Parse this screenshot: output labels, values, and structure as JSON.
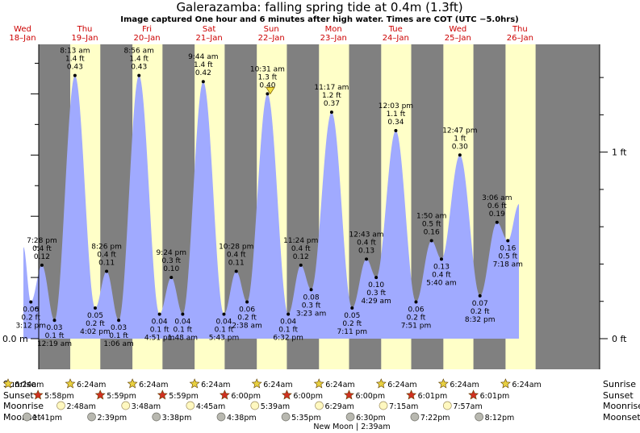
{
  "title": "Galerazamba: falling  spring tide at 0.4m (1.3ft)",
  "subtitle": "Image captured One hour and 6 minutes after high water. Times are COT (UTC −5.0hrs)",
  "colors": {
    "night": "#808080",
    "day": "#ffffc8",
    "water": "#a0aaff",
    "day_label": "#cc0000",
    "sun": "#e8d040",
    "sunset_star": "#d03020",
    "moonrise": "#fff8c0",
    "moonset": "#b8b8b0"
  },
  "days": [
    {
      "dow": "Wed",
      "date": "18–Jan"
    },
    {
      "dow": "Thu",
      "date": "19–Jan"
    },
    {
      "dow": "Fri",
      "date": "20–Jan"
    },
    {
      "dow": "Sat",
      "date": "21–Jan"
    },
    {
      "dow": "Sun",
      "date": "22–Jan"
    },
    {
      "dow": "Mon",
      "date": "23–Jan"
    },
    {
      "dow": "Tue",
      "date": "24–Jan"
    },
    {
      "dow": "Wed",
      "date": "25–Jan"
    },
    {
      "dow": "Thu",
      "date": "26–Jan"
    }
  ],
  "row_labels": {
    "sunrise": "Sunrise",
    "sunset": "Sunset",
    "moonrise": "Moonrise",
    "moonset": "Moonset"
  },
  "sunrise": [
    "6:24am",
    "6:24am",
    "6:24am",
    "6:24am",
    "6:24am",
    "6:24am",
    "6:24am",
    "6:24am",
    "6:24am"
  ],
  "sunset": [
    "5:58pm",
    "5:59pm",
    "5:59pm",
    "6:00pm",
    "6:00pm",
    "6:00pm",
    "6:01pm",
    "6:01pm"
  ],
  "moonrise": [
    "2:48am",
    "3:48am",
    "4:45am",
    "5:39am",
    "6:29am",
    "7:15am",
    "7:57am"
  ],
  "moonset": [
    "1:41pm",
    "2:39pm",
    "3:38pm",
    "4:38pm",
    "5:35pm",
    "6:30pm",
    "7:22pm",
    "8:12pm"
  ],
  "new_moon": "New Moon | 2:39am",
  "chart_data": {
    "type": "area",
    "title": "Galerazamba: falling  spring tide at 0.4m (1.3ft)",
    "y_unit_left": "m",
    "y_unit_right": "ft",
    "y_ticks_left": [
      {
        "value": 0.0,
        "label": "0.0 m"
      }
    ],
    "y_ticks_right": [
      {
        "value": 0,
        "label": "0 ft"
      },
      {
        "value": 1,
        "label": "1 ft"
      }
    ],
    "ylim_m": [
      0.0,
      0.5
    ],
    "x_range": [
      "Wed 18–Jan",
      "Thu 26–Jan"
    ],
    "current_level_m": 0.4,
    "events": [
      {
        "time": "3:12 pm",
        "day": "Wed 18–Jan",
        "m": 0.06,
        "ft": 0.2,
        "type": "low"
      },
      {
        "time": "7:28 pm",
        "day": "Wed 18–Jan",
        "m": 0.12,
        "ft": 0.4,
        "type": "high"
      },
      {
        "time": "12:19 am",
        "day": "Thu 19–Jan",
        "m": 0.03,
        "ft": 0.1,
        "type": "low"
      },
      {
        "time": "8:13 am",
        "day": "Thu 19–Jan",
        "m": 0.43,
        "ft": 1.4,
        "type": "high"
      },
      {
        "time": "4:02 pm",
        "day": "Thu 19–Jan",
        "m": 0.05,
        "ft": 0.2,
        "type": "low"
      },
      {
        "time": "8:26 pm",
        "day": "Thu 19–Jan",
        "m": 0.11,
        "ft": 0.4,
        "type": "high"
      },
      {
        "time": "1:06 am",
        "day": "Fri 20–Jan",
        "m": 0.03,
        "ft": 0.1,
        "type": "low"
      },
      {
        "time": "8:56 am",
        "day": "Fri 20–Jan",
        "m": 0.43,
        "ft": 1.4,
        "type": "high"
      },
      {
        "time": "4:51 pm",
        "day": "Fri 20–Jan",
        "m": 0.04,
        "ft": 0.1,
        "type": "low"
      },
      {
        "time": "9:24 pm",
        "day": "Fri 20–Jan",
        "m": 0.1,
        "ft": 0.3,
        "type": "high"
      },
      {
        "time": "1:48 am",
        "day": "Sat 21–Jan",
        "m": 0.04,
        "ft": 0.1,
        "type": "low"
      },
      {
        "time": "9:44 am",
        "day": "Sat 21–Jan",
        "m": 0.42,
        "ft": 1.4,
        "type": "high"
      },
      {
        "time": "5:43 pm",
        "day": "Sat 21–Jan",
        "m": 0.04,
        "ft": 0.1,
        "type": "low"
      },
      {
        "time": "10:28 pm",
        "day": "Sat 21–Jan",
        "m": 0.11,
        "ft": 0.4,
        "type": "high"
      },
      {
        "time": "2:38 am",
        "day": "Sun 22–Jan",
        "m": 0.06,
        "ft": 0.2,
        "type": "low"
      },
      {
        "time": "10:31 am",
        "day": "Sun 22–Jan",
        "m": 0.4,
        "ft": 1.3,
        "type": "high"
      },
      {
        "time": "6:32 pm",
        "day": "Sun 22–Jan",
        "m": 0.04,
        "ft": 0.1,
        "type": "low"
      },
      {
        "time": "11:24 pm",
        "day": "Sun 22–Jan",
        "m": 0.12,
        "ft": 0.4,
        "type": "high"
      },
      {
        "time": "3:23 am",
        "day": "Mon 23–Jan",
        "m": 0.08,
        "ft": 0.3,
        "type": "low"
      },
      {
        "time": "11:17 am",
        "day": "Mon 23–Jan",
        "m": 0.37,
        "ft": 1.2,
        "type": "high"
      },
      {
        "time": "7:11 pm",
        "day": "Mon 23–Jan",
        "m": 0.05,
        "ft": 0.2,
        "type": "low"
      },
      {
        "time": "12:43 am",
        "day": "Tue 24–Jan",
        "m": 0.13,
        "ft": 0.4,
        "type": "high"
      },
      {
        "time": "4:29 am",
        "day": "Tue 24–Jan",
        "m": 0.1,
        "ft": 0.3,
        "type": "low"
      },
      {
        "time": "12:03 pm",
        "day": "Tue 24–Jan",
        "m": 0.34,
        "ft": 1.1,
        "type": "high"
      },
      {
        "time": "7:51 pm",
        "day": "Tue 24–Jan",
        "m": 0.06,
        "ft": 0.2,
        "type": "low"
      },
      {
        "time": "1:50 am",
        "day": "Wed 25–Jan",
        "m": 0.16,
        "ft": 0.5,
        "type": "high"
      },
      {
        "time": "5:40 am",
        "day": "Wed 25–Jan",
        "m": 0.13,
        "ft": 0.4,
        "type": "low"
      },
      {
        "time": "12:47 pm",
        "day": "Wed 25–Jan",
        "m": 0.3,
        "ft": 1.0,
        "type": "high"
      },
      {
        "time": "8:32 pm",
        "day": "Wed 25–Jan",
        "m": 0.07,
        "ft": 0.2,
        "type": "low"
      },
      {
        "time": "3:06 am",
        "day": "Thu 26–Jan",
        "m": 0.19,
        "ft": 0.6,
        "type": "high"
      },
      {
        "time": "7:18 am",
        "day": "Thu 26–Jan",
        "m": 0.16,
        "ft": 0.5,
        "type": "low"
      }
    ]
  }
}
